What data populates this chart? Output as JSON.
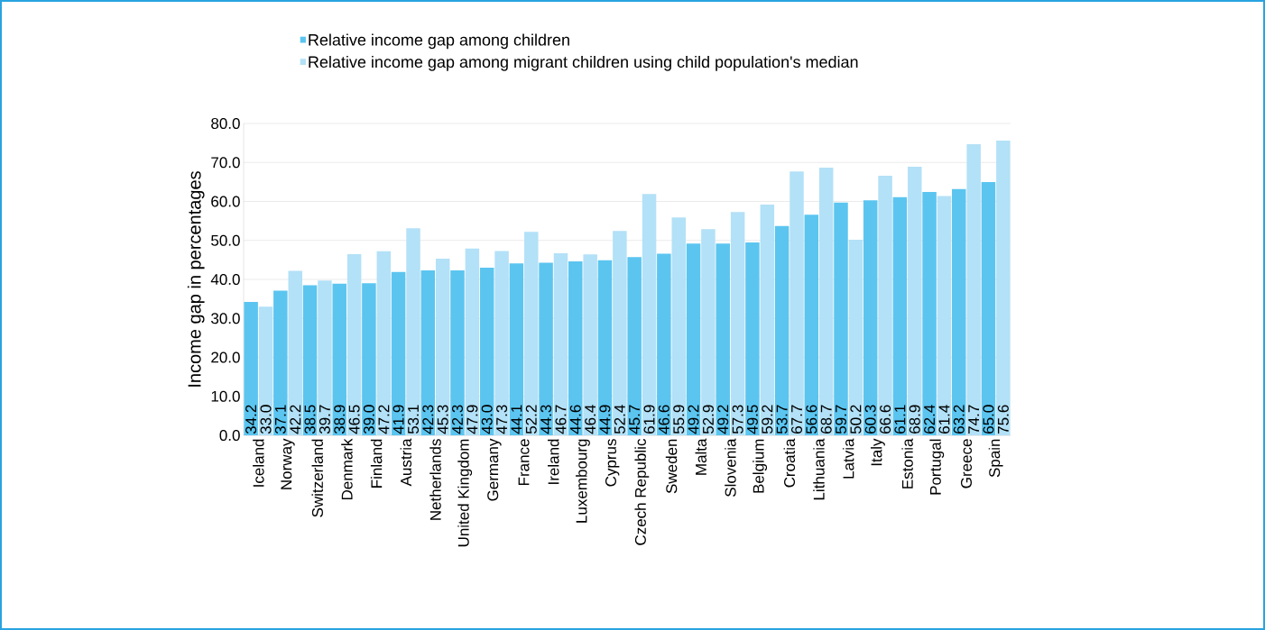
{
  "chart_data": {
    "type": "bar",
    "ylabel": "Income gap in percentages",
    "categories": [
      "Iceland",
      "Norway",
      "Switzerland",
      "Denmark",
      "Finland",
      "Austria",
      "Netherlands",
      "United Kingdom",
      "Germany",
      "France",
      "Ireland",
      "Luxembourg",
      "Cyprus",
      "Czech Republic",
      "Sweden",
      "Malta",
      "Slovenia",
      "Belgium",
      "Croatia",
      "Lithuania",
      "Latvia",
      "Italy",
      "Estonia",
      "Portugal",
      "Greece",
      "Spain"
    ],
    "series": [
      {
        "name": "Relative income gap among children",
        "color": "#5bc5f0",
        "values": [
          34.2,
          37.1,
          38.5,
          38.9,
          39.0,
          41.9,
          42.3,
          42.3,
          43.0,
          44.1,
          44.3,
          44.6,
          44.9,
          45.7,
          46.6,
          49.2,
          49.2,
          49.5,
          53.7,
          56.6,
          59.7,
          60.3,
          61.1,
          62.4,
          63.2,
          65.0
        ],
        "value_labels": [
          "34.2",
          "37.1",
          "38.5",
          "38.9",
          "39.0",
          "41.9",
          "42.3",
          "42.3",
          "43.0",
          "44.1",
          "44.3",
          "44.6",
          "44.9",
          "45.7",
          "46.6",
          "49.2",
          "49.2",
          "49.5",
          "53.7",
          "56.6",
          "59.7",
          "60.3",
          "61.1",
          "62.4",
          "63.2",
          "65.0"
        ]
      },
      {
        "name": "Relative income gap among migrant children using child population's median",
        "color": "#b3e1f7",
        "values": [
          33.0,
          42.2,
          39.7,
          46.5,
          47.2,
          53.1,
          45.3,
          47.9,
          47.3,
          52.2,
          46.7,
          46.4,
          52.4,
          61.9,
          55.9,
          52.9,
          57.3,
          59.2,
          67.7,
          68.7,
          50.2,
          66.6,
          68.9,
          61.4,
          74.7,
          75.6
        ],
        "value_labels": [
          "33.0",
          "42.2",
          "39.7",
          "46.5",
          "47.2",
          "53.1",
          "45.3",
          "47.9",
          "47.3",
          "52.2",
          "46.7",
          "46.4",
          "52.4",
          "61.9",
          "55.9",
          "52.9",
          "57.3",
          "59.2",
          "67.7",
          "68.7",
          "50.2",
          "66.6",
          "68.9",
          "61.4",
          "74.7",
          "75.6"
        ]
      }
    ],
    "ylim": [
      0,
      80
    ],
    "yticks": [
      {
        "value": 0,
        "label": "0.0"
      },
      {
        "value": 10,
        "label": "10.0"
      },
      {
        "value": 20,
        "label": "20.0"
      },
      {
        "value": 30,
        "label": "30.0"
      },
      {
        "value": 40,
        "label": "40.0"
      },
      {
        "value": 50,
        "label": "50.0"
      },
      {
        "value": 60,
        "label": "60.0"
      },
      {
        "value": 70,
        "label": "70.0"
      },
      {
        "value": 80,
        "label": "80.0"
      }
    ],
    "grid": "y",
    "legend": "top"
  }
}
